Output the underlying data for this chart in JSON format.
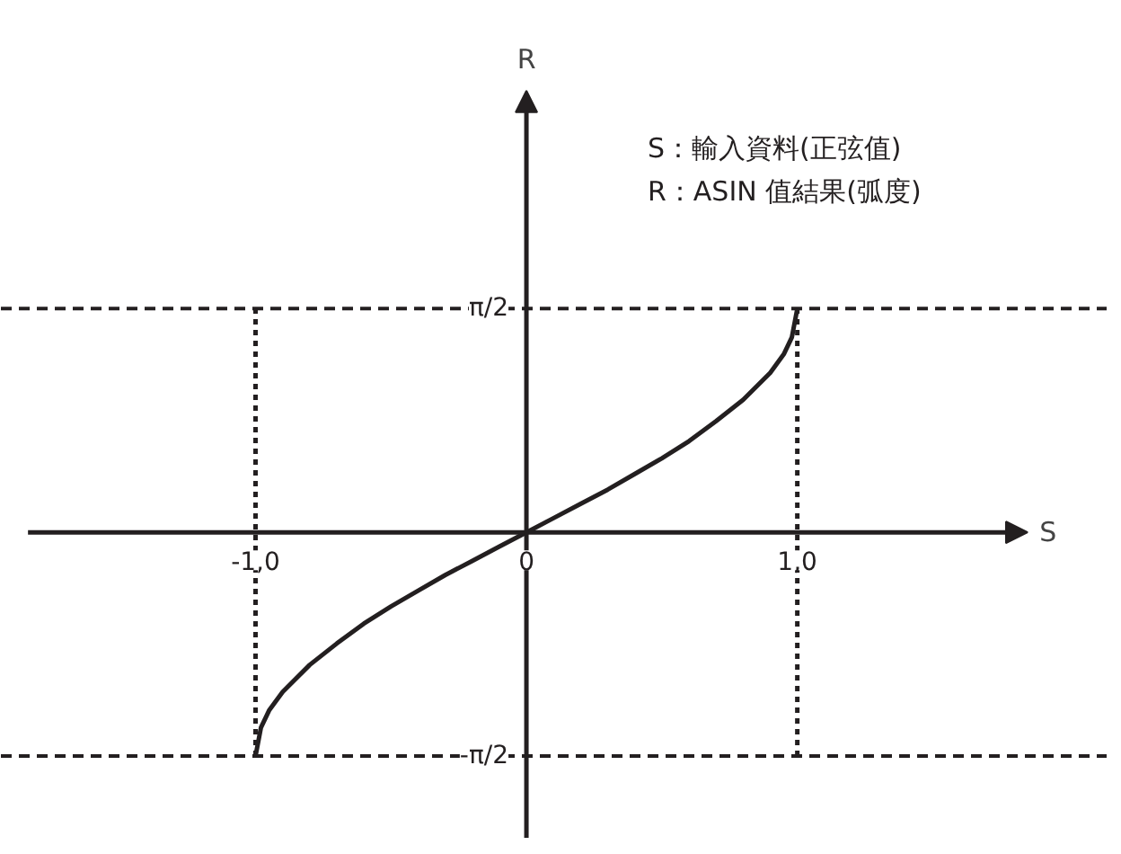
{
  "chart_data": {
    "type": "line",
    "xlabel": "S",
    "ylabel": "R",
    "annotations": [
      "S：輸入資料(正弦值)",
      "R：ASIN 值結果(弧度)"
    ],
    "series": [
      {
        "color": "#231f20",
        "x": [
          -1,
          -0.98,
          -0.95,
          -0.9,
          -0.8,
          -0.7,
          -0.6,
          -0.5,
          -0.4,
          -0.3,
          -0.2,
          -0.1,
          0,
          0.1,
          0.2,
          0.3,
          0.4,
          0.5,
          0.6,
          0.7,
          0.8,
          0.9,
          0.95,
          0.98,
          1
        ],
        "values": [
          -1.57,
          -1.37,
          -1.25,
          -1.12,
          -0.93,
          -0.78,
          -0.64,
          -0.52,
          -0.41,
          -0.3,
          -0.2,
          -0.1,
          0,
          0.1,
          0.2,
          0.3,
          0.41,
          0.52,
          0.64,
          0.78,
          0.93,
          1.12,
          1.25,
          1.37,
          1.57
        ]
      }
    ],
    "xlim": [
      -1.84,
      1.85
    ],
    "ylim": [
      -2.15,
      3.1
    ],
    "xticks": [
      {
        "value": -1,
        "label": "-1,0"
      },
      0,
      {
        "value": 1,
        "label": "1,0"
      }
    ],
    "yticks": [
      {
        "value": -1.57,
        "label": "-π/2"
      },
      {
        "value": 1.57,
        "label": "π/2"
      }
    ],
    "ref_lines": [
      {
        "axis": "y",
        "value": 1.57,
        "line_style": "dashed"
      },
      {
        "axis": "y",
        "value": -1.57,
        "line_style": "dashed"
      },
      {
        "axis": "x",
        "value": -1,
        "line_style": "dotted"
      },
      {
        "axis": "x",
        "value": 1,
        "line_style": "dotted"
      }
    ],
    "marker": "none",
    "line_style": "solid"
  }
}
